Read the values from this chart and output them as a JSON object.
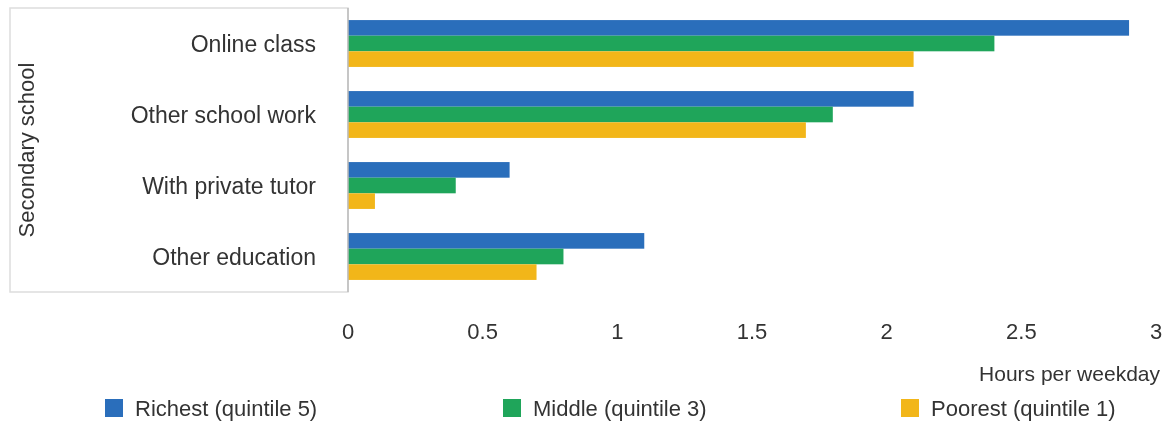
{
  "chart_data": {
    "type": "bar",
    "orientation": "horizontal",
    "ylabel": "Secondary school",
    "xlabel": "Hours per weekday",
    "categories": [
      "Online class",
      "Other school work",
      "With private tutor",
      "Other education"
    ],
    "series": [
      {
        "name": "Richest (quintile 5)",
        "color": "#2a6ebb",
        "values": [
          2.9,
          2.1,
          0.6,
          1.1
        ]
      },
      {
        "name": "Middle (quintile 3)",
        "color": "#1fa55a",
        "values": [
          2.4,
          1.8,
          0.4,
          0.8
        ]
      },
      {
        "name": "Poorest (quintile 1)",
        "color": "#f2b619",
        "values": [
          2.1,
          1.7,
          0.1,
          0.7
        ]
      }
    ],
    "xlim": [
      0,
      3
    ],
    "xticks": [
      0,
      0.5,
      1,
      1.5,
      2,
      2.5,
      3
    ],
    "grid": false,
    "legend": "bottom"
  }
}
